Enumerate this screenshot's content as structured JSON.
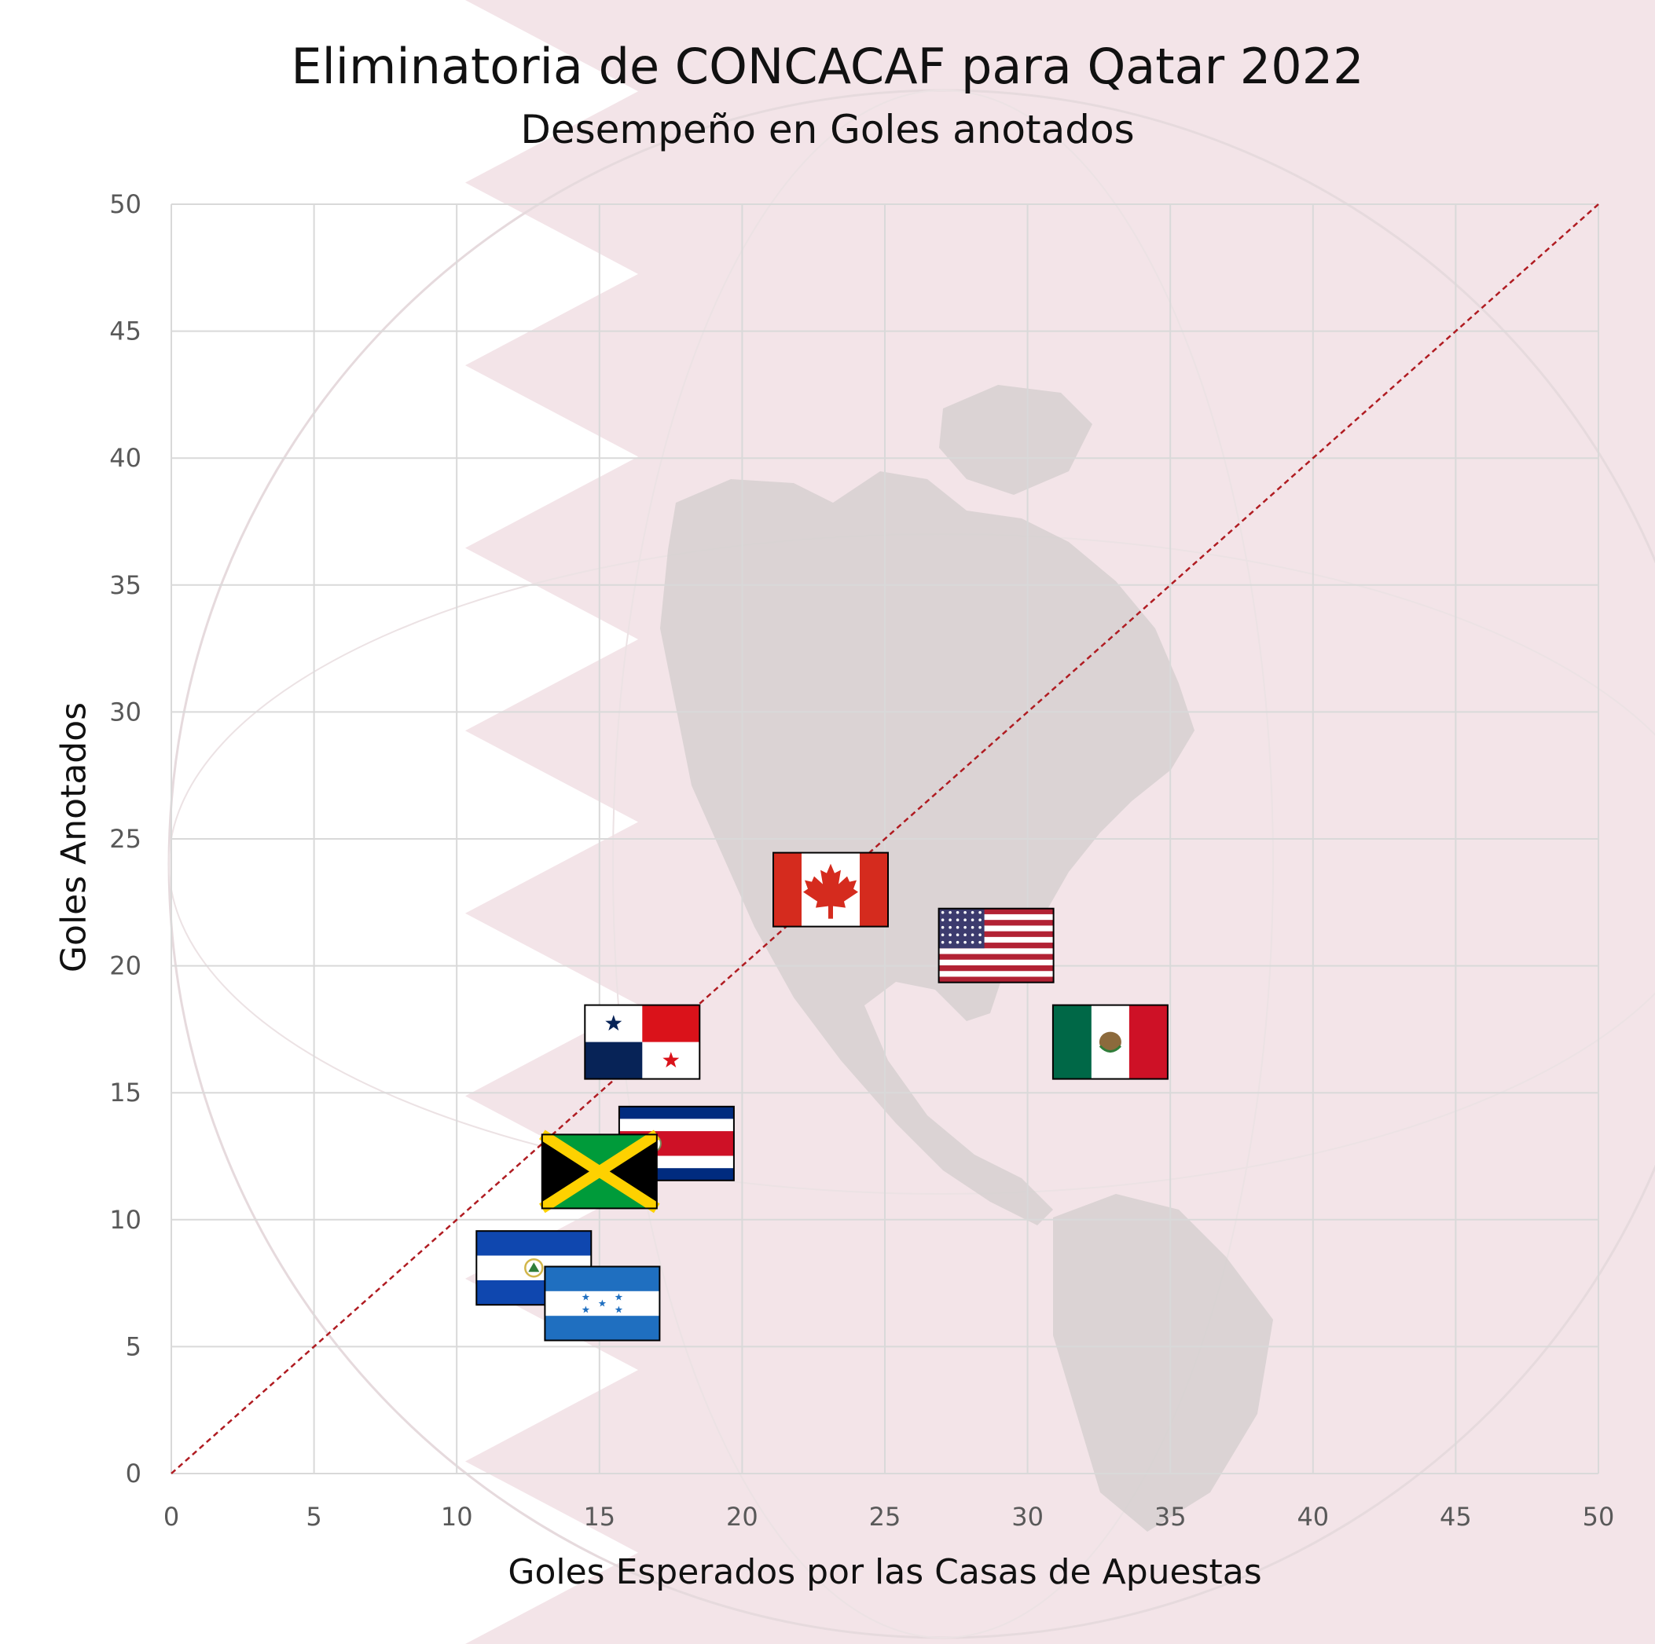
{
  "chart_data": {
    "type": "scatter",
    "title": "Eliminatoria de CONCACAF para Qatar 2022",
    "subtitle": "Desempeño en Goles anotados",
    "xlabel": "Goles Esperados por las Casas de Apuestas",
    "ylabel": "Goles Anotados",
    "xlim": [
      0,
      50
    ],
    "ylim": [
      0,
      50
    ],
    "xticks": [
      "0",
      "5",
      "10",
      "15",
      "20",
      "25",
      "30",
      "35",
      "40",
      "45",
      "50"
    ],
    "yticks": [
      "0",
      "5",
      "10",
      "15",
      "20",
      "25",
      "30",
      "35",
      "40",
      "45",
      "50"
    ],
    "grid": true,
    "reference_line": {
      "from": [
        0,
        0
      ],
      "to": [
        50,
        50
      ],
      "style": "dashed",
      "color": "#b01c22"
    },
    "points": [
      {
        "flag": "canada-flag",
        "x": 23.1,
        "y": 23.0
      },
      {
        "flag": "usa-flag",
        "x": 28.9,
        "y": 20.8
      },
      {
        "flag": "mexico-flag",
        "x": 32.9,
        "y": 17.0
      },
      {
        "flag": "panama-flag",
        "x": 16.5,
        "y": 17.0
      },
      {
        "flag": "costa-rica-flag",
        "x": 17.7,
        "y": 13.0
      },
      {
        "flag": "jamaica-flag",
        "x": 15.0,
        "y": 11.9
      },
      {
        "flag": "el-salvador-flag",
        "x": 12.7,
        "y": 8.1
      },
      {
        "flag": "honduras-flag",
        "x": 15.1,
        "y": 6.7
      }
    ]
  },
  "colors": {
    "background_band": "#f3e4e8",
    "continent": "#d6d0d0",
    "grid": "#d9d9d9",
    "tick_text": "#595959"
  }
}
